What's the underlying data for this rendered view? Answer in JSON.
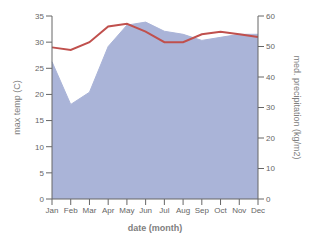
{
  "chart_data": {
    "type": "combo",
    "xlabel": "date (month)",
    "ylabel": "max temp (C)",
    "y2label": "med. precipitation (kg/m2)",
    "categories": [
      "Jan",
      "Feb",
      "Mar",
      "Apr",
      "May",
      "Jun",
      "Jul",
      "Aug",
      "Sep",
      "Oct",
      "Nov",
      "Dec"
    ],
    "series": [
      {
        "type": "area",
        "color": "#aab4d8",
        "axis": "y2",
        "values": [
          45.0,
          31.0,
          35.0,
          50.0,
          57.0,
          58.0,
          55.0,
          54.0,
          52.0,
          53.0,
          54.0,
          54.0
        ]
      },
      {
        "type": "line",
        "color": "#c0504d",
        "values": [
          29.0,
          28.5,
          30.0,
          33.0,
          33.5,
          32.0,
          30.0,
          30.0,
          31.5,
          32.0,
          31.5,
          31.0
        ]
      }
    ],
    "ylim": [
      0,
      35
    ],
    "yticks": [
      0,
      5,
      10,
      15,
      20,
      25,
      30,
      35
    ],
    "y2lim": [
      0,
      60
    ],
    "y2ticks": [
      0,
      10,
      20,
      30,
      40,
      50,
      60
    ],
    "grid": false
  }
}
